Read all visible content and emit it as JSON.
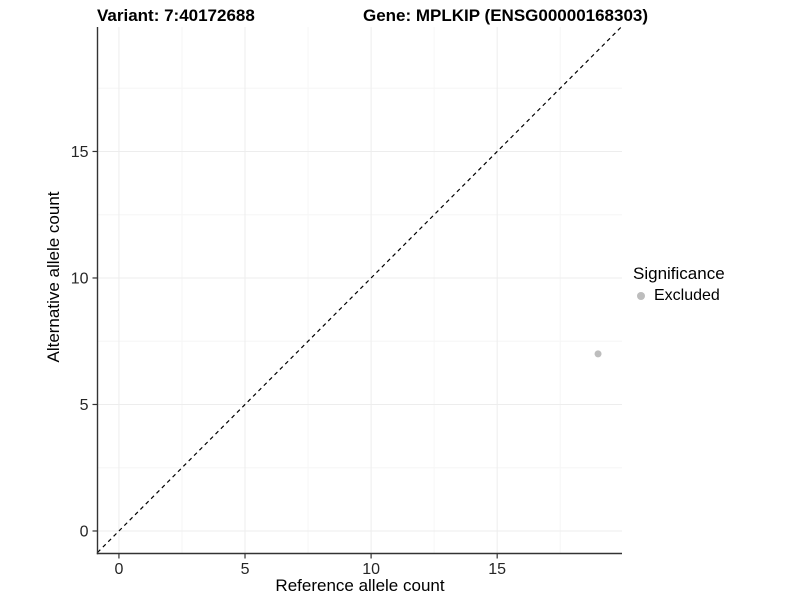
{
  "header": {
    "variant_label": "Variant: 7:40172688",
    "gene_label": "Gene: MPLKIP (ENSG00000168303)"
  },
  "legend": {
    "title": "Significance",
    "items": [
      {
        "label": "Excluded",
        "color": "#bdbdbd",
        "marker": "circle-icon"
      }
    ]
  },
  "chart_data": {
    "type": "scatter",
    "title": "Variant: 7:40172688  |  Gene: MPLKIP (ENSG00000168303)",
    "xlabel": "Reference allele count",
    "ylabel": "Alternative allele count",
    "xlim": [
      -0.85,
      19.95
    ],
    "ylim": [
      -0.89,
      19.92
    ],
    "x_ticks": [
      0,
      5,
      10,
      15
    ],
    "y_ticks": [
      0,
      5,
      10,
      15
    ],
    "x_minor_ticks": [
      2.5,
      7.5,
      12.5,
      17.5
    ],
    "y_minor_ticks": [
      2.5,
      7.5,
      12.5,
      17.5
    ],
    "grid": true,
    "legend_position": "right",
    "reference_line": {
      "slope": 1,
      "intercept": 0,
      "style": "dashed",
      "color": "#000000"
    },
    "series": [
      {
        "name": "Excluded",
        "color": "#bdbdbd",
        "points": [
          {
            "x": 19,
            "y": 7
          }
        ]
      }
    ],
    "colors": {
      "grid_major": "#ededed",
      "grid_minor": "#f6f6f6",
      "axis_line": "#333333",
      "tick_text": "#262626"
    }
  }
}
